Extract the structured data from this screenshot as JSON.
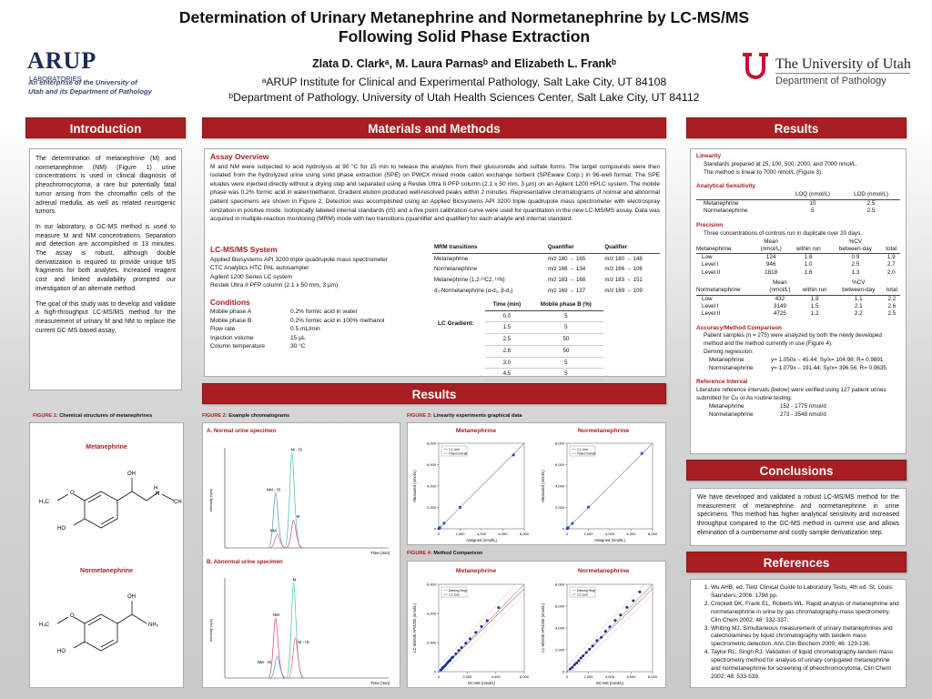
{
  "header": {
    "title_line1": "Determination of Urinary Metanephrine and Normetanephrine by LC-MS/MS",
    "title_line2": "Following Solid Phase Extraction",
    "authors": "Zlata D. Clarkᵃ, M. Laura Parnasᵇ and Elizabeth L. Frankᵇ",
    "affil1": "ᵃARUP Institute for Clinical and Experimental Pathology, Salt Lake City, UT 84108",
    "affil2": "ᵇDepartment of Pathology, University of Utah Health Sciences Center, Salt Lake City, UT 84112",
    "arup_name": "ARUP",
    "arup_labs": "LABORATORIES",
    "arup_tag1": "An enterprise of the University of",
    "arup_tag2": "Utah and its Department of Pathology",
    "uu_name": "The University of Utah",
    "uu_dept": "Department of Pathology"
  },
  "sections": {
    "intro": "Introduction",
    "mm": "Materials and Methods",
    "results": "Results",
    "results2": "Results",
    "conclusions": "Conclusions",
    "references": "References"
  },
  "intro": {
    "p1": "The determination of metanephrine (M) and normetanephrine (NM) (Figure 1) urine concentrations is used in clinical diagnosis of pheochromocytoma, a rare but potentially fatal tumor arising from the chromaffin cells of the adrenal medulla, as well as related neurogenic tumors.",
    "p2": "In our laboratory, a GC-MS method is used to measure M and NM concentrations. Separation and detection are accomplished in 13 minutes. The assay is robust, although double derivatization is required to provide unique MS fragments for both analytes. Increased reagent cost and limited availability prompted our investigation of an alternate method.",
    "p3": "The goal of this study was to develop and validate a high-throughput LC-MS/MS method for the measurement of urinary M and NM to replace the current GC-MS based assay."
  },
  "mm": {
    "assay_h": "Assay Overview",
    "assay_p": "M and NM were subjected to acid hydrolysis at 90 °C for 15 min to release the analytes from their glucuronide and sulfate forms. The target compounds were then isolated from the hydrolyzed urine using solid phase extraction (SPE) on PWCX mixed mode cation exchange sorbent (SPEware Corp.) in 96-well format. The SPE eluates were injected directly without a drying step and separated using a Restek Ultra II PFP column (2.1 x 50 mm, 3 µm) on an Agilent 1200 HPLC system. The mobile phase was 0.2% formic acid in water/methanol. Gradient elution produced well-resolved peaks within 2 minutes. Representative chromatograms of normal and abnormal patient specimens are shown in Figure 2. Detection was accomplished using an Applied Biosystems API 3200 triple quadrupole mass spectrometer with electrospray ionization in positive mode. Isotopically labeled internal standards (IS) and a five point calibration curve were used for quantitation in the new LC-MS/MS assay. Data was acquired in multiple-reaction monitoring (MRM) mode with two transitions (quantifier and qualifier) for each analyte and internal standard.",
    "sys_h": "LC-MS/MS System",
    "sys_lines": [
      "Applied Biosystems API 3200 triple quadrupole mass spectrometer",
      "CTC Analytics HTC PAL autosampler",
      "Agilent 1200 Series LC system",
      "Restek Ultra II PFP column (2.1 x 50 mm, 3 µm)"
    ],
    "cond_h": "Conditions",
    "conditions": [
      [
        "Mobile phase A",
        "0.2% formic acid in water"
      ],
      [
        "Mobile phase B",
        "0.2% formic acid in 100% methanol"
      ],
      [
        "Flow rate",
        "0.5 mL/min"
      ],
      [
        "Injection volume",
        "15 µL"
      ],
      [
        "Column temperature",
        "30 °C"
      ]
    ],
    "mrm_headers": [
      "MRM transitions",
      "Quantifier",
      "Qualifier"
    ],
    "mrm_rows": [
      [
        "Metanephrine",
        "m/z 180 → 165",
        "m/z 180 → 148"
      ],
      [
        "Normetanephrine",
        "m/z 166 → 134",
        "m/z 166 → 106"
      ],
      [
        "Metanephrine (1,2-¹³C2, ¹⁵N)",
        "m/z 183 → 168",
        "m/z 183 → 151"
      ],
      [
        "d₃-Normetanephrine (α-d₂, β-d₁)",
        "m/z 169 → 137",
        "m/z 169 → 109"
      ]
    ],
    "grad_label": "LC Gradient:",
    "grad_headers": [
      "Time (min)",
      "Mobile phase B (%)"
    ],
    "grad_rows": [
      [
        "0.0",
        "5"
      ],
      [
        "1.5",
        "5"
      ],
      [
        "2.5",
        "50"
      ],
      [
        "2.8",
        "50"
      ],
      [
        "3.0",
        "5"
      ],
      [
        "4.5",
        "5"
      ]
    ]
  },
  "figures": {
    "fig1_num": "FIGURE 1:",
    "fig1_cap": "Chemical structures of metanephrines",
    "fig1_m": "Metanephrine",
    "fig1_nm": "Normetanephrine",
    "fig2_num": "FIGURE 2:",
    "fig2_cap": "Example chromatograms",
    "fig2_a": "A. Normal urine specimen",
    "fig2_b": "B. Abnormal urine specimen",
    "fig3_num": "FIGURE 3:",
    "fig3_cap": "Linearity experiments graphical data",
    "fig4_num": "FIGURE 4:",
    "fig4_cap": "Method Comparison",
    "m_title": "Metanephrine",
    "nm_title": "Normetanephrine"
  },
  "results": {
    "lin_h": "Linearity",
    "lin_1": "Standards prepared at 25, 100, 500, 2000, and 7000 nmol/L.",
    "lin_2": "The method is linear to 7000 nmol/L (Figure 3).",
    "sens_h": "Analytical Sensitivity",
    "sens_headers": [
      "",
      "LOQ (nmol/L)",
      "LOD (nmol/L)"
    ],
    "sens_rows": [
      [
        "Metanephrine",
        "10",
        "2.5"
      ],
      [
        "Normetanephrine",
        "5",
        "2.5"
      ]
    ],
    "prec_h": "Precision",
    "prec_1": "Three concentrations of controls run in duplicate over 20 days.",
    "prec_m_head1": [
      "",
      "Mean",
      "",
      "%CV",
      ""
    ],
    "prec_m_head2": [
      "Metanephrine",
      "(nmol/L)",
      "within run",
      "between-day",
      "total"
    ],
    "prec_m_rows": [
      [
        "Low",
        "124",
        "1.6",
        "0.9",
        "1.9"
      ],
      [
        "Level I",
        "946",
        "1.0",
        "2.5",
        "2.7"
      ],
      [
        "Level II",
        "1818",
        "1.6",
        "1.3",
        "2.0"
      ]
    ],
    "prec_nm_head1": [
      "",
      "Mean",
      "",
      "%CV",
      ""
    ],
    "prec_nm_head2": [
      "Normetanephrine",
      "(nmol/L)",
      "within run",
      "between-day",
      "total"
    ],
    "prec_nm_rows": [
      [
        "Low",
        "432",
        "1.9",
        "1.1",
        "2.2"
      ],
      [
        "Level I",
        "3149",
        "1.5",
        "2.1",
        "2.6"
      ],
      [
        "Level II",
        "4725",
        "1.2",
        "2.2",
        "2.5"
      ]
    ],
    "acc_h": "Accuracy/Method Comparison",
    "acc_1": "Patient samples (n = 275) were analyzed by both the newly developed method and the method currently in use (Figure 4).",
    "acc_2": "Deming regression:",
    "acc_m": [
      "Metanephrine",
      "y= 1.050x – 45.44; Sy/x= 104.98; R= 0.9891"
    ],
    "acc_nm": [
      "Normetanephrine",
      "y= 1.079x – 191.44; Sy/x= 396.56; R= 0.9635"
    ],
    "ref_h": "Reference Interval",
    "ref_1": "Literature reference intervals (below) were verified using 127 patient urines submitted for Cu or As routine testing.",
    "ref_m": [
      "Metanephrine",
      "152 - 1775 nmol/d"
    ],
    "ref_nm": [
      "Normetanephrine",
      "273 - 3548 nmol/d"
    ]
  },
  "conclusions": "We have developed and validated a robust LC-MS/MS method for the measurement of metanephrine and normetanephrine in urine specimens. This method has higher analytical sensitivity and increased throughput compared to the GC-MS method in current use and allows elimination of a cumbersome and costly sample derivatization step.",
  "references": [
    "Wu AHB, ed. Tietz Clinical Guide to Laboratory Tests, 4th ed. St. Louis: Saunders, 2006: 1798 pp.",
    "Crockett DK, Frank EL, Roberts WL. Rapid analysis of metanephrine and normetanephrine in urine by gas chromatography-mass spectrometry. Clin Chem 2002; 48: 332-337.",
    "Whiting MJ. Simultaneous measurement of urinary metanephrines and catecholamines by liquid chromatography with tandem mass spectrometric detection. Ann Clin Biochem 2009; 46: 129-136.",
    "Taylor RL, Singh RJ. Validation of liquid chromatography-tandem mass spectrometry method for analysis of urinary conjugated metanephrine and normetanephrine for screening of pheochromocytoma. Clin Chem 2002; 48: 533-539."
  ],
  "chrom": {
    "a_labels": [
      "M - IS",
      "NM - IS",
      "M",
      "NM"
    ],
    "b_labels": [
      "M",
      "NM",
      "M - IS",
      "NM - IS"
    ],
    "ylabel": "Intensity (cps)",
    "xlabel": "Time (min)"
  },
  "chart_data": [
    {
      "type": "scatter",
      "title": "Metanephrine",
      "xlabel": "Assigned (nmol/L)",
      "ylabel": "Measured (nmol/L)",
      "legend": [
        "1:1 Line",
        "Fitted Overall"
      ],
      "xlim": [
        0,
        8000
      ],
      "ylim": [
        0,
        8000
      ],
      "xticks": [
        "0",
        "2,000",
        "4,000",
        "6,000",
        "8,000"
      ],
      "yticks": [
        "0",
        "2,000",
        "4,000",
        "6,000",
        "8,000"
      ],
      "x": [
        25,
        100,
        500,
        2000,
        7000
      ],
      "y": [
        30,
        110,
        520,
        2010,
        6900
      ]
    },
    {
      "type": "scatter",
      "title": "Normetanephrine",
      "xlabel": "Assigned (nmol/L)",
      "ylabel": "Measured (nmol/L)",
      "legend": [
        "1:1 Line",
        "Fitted Overall"
      ],
      "xlim": [
        0,
        8000
      ],
      "ylim": [
        0,
        8000
      ],
      "xticks": [
        "0",
        "2,000",
        "4,000",
        "6,000",
        "8,000"
      ],
      "yticks": [
        "0",
        "2,000",
        "4,000",
        "6,000",
        "8,000"
      ],
      "x": [
        25,
        100,
        500,
        2000,
        7000
      ],
      "y": [
        28,
        105,
        510,
        2030,
        7050
      ]
    },
    {
      "type": "scatter",
      "title": "Metanephrine",
      "xlabel": "GC-MS (nmol/L)",
      "ylabel": "LC-MS/MS API3200 (nmol/L)",
      "legend": [
        "Deming Regr",
        "1:1 Line"
      ],
      "xlim": [
        0,
        6000
      ],
      "ylim": [
        0,
        6000
      ],
      "xticks": [
        "0",
        "2,000",
        "4,000",
        "6,000"
      ],
      "yticks": [
        "0",
        "2,000",
        "4,000",
        "6,000"
      ],
      "x": [
        150,
        250,
        300,
        400,
        500,
        600,
        700,
        800,
        900,
        1000,
        1200,
        1400,
        1600,
        1900,
        2200,
        2600,
        3000,
        3400,
        4200
      ],
      "y": [
        110,
        220,
        290,
        370,
        480,
        590,
        700,
        790,
        940,
        1010,
        1230,
        1460,
        1660,
        1960,
        2260,
        2700,
        3100,
        3500,
        4400
      ]
    },
    {
      "type": "scatter",
      "title": "Normetanephrine",
      "xlabel": "GC-MS (nmol/L)",
      "ylabel": "LC-MS/MS API3200 (nmol/L)",
      "legend": [
        "Deming Regr",
        "1:1 Line"
      ],
      "xlim": [
        0,
        8000
      ],
      "ylim": [
        0,
        8000
      ],
      "xticks": [
        "0",
        "2,000",
        "4,000",
        "6,000",
        "8,000"
      ],
      "yticks": [
        "0",
        "2,000",
        "4,000",
        "6,000",
        "8,000"
      ],
      "x": [
        300,
        500,
        700,
        900,
        1100,
        1300,
        1500,
        1800,
        2100,
        2400,
        2800,
        3200,
        3600,
        4000,
        4500,
        5000,
        5600,
        6200,
        6800
      ],
      "y": [
        250,
        400,
        640,
        800,
        1000,
        1250,
        1450,
        1750,
        2050,
        2350,
        2850,
        3150,
        3700,
        4100,
        4700,
        5200,
        5900,
        6500,
        7300
      ]
    }
  ]
}
